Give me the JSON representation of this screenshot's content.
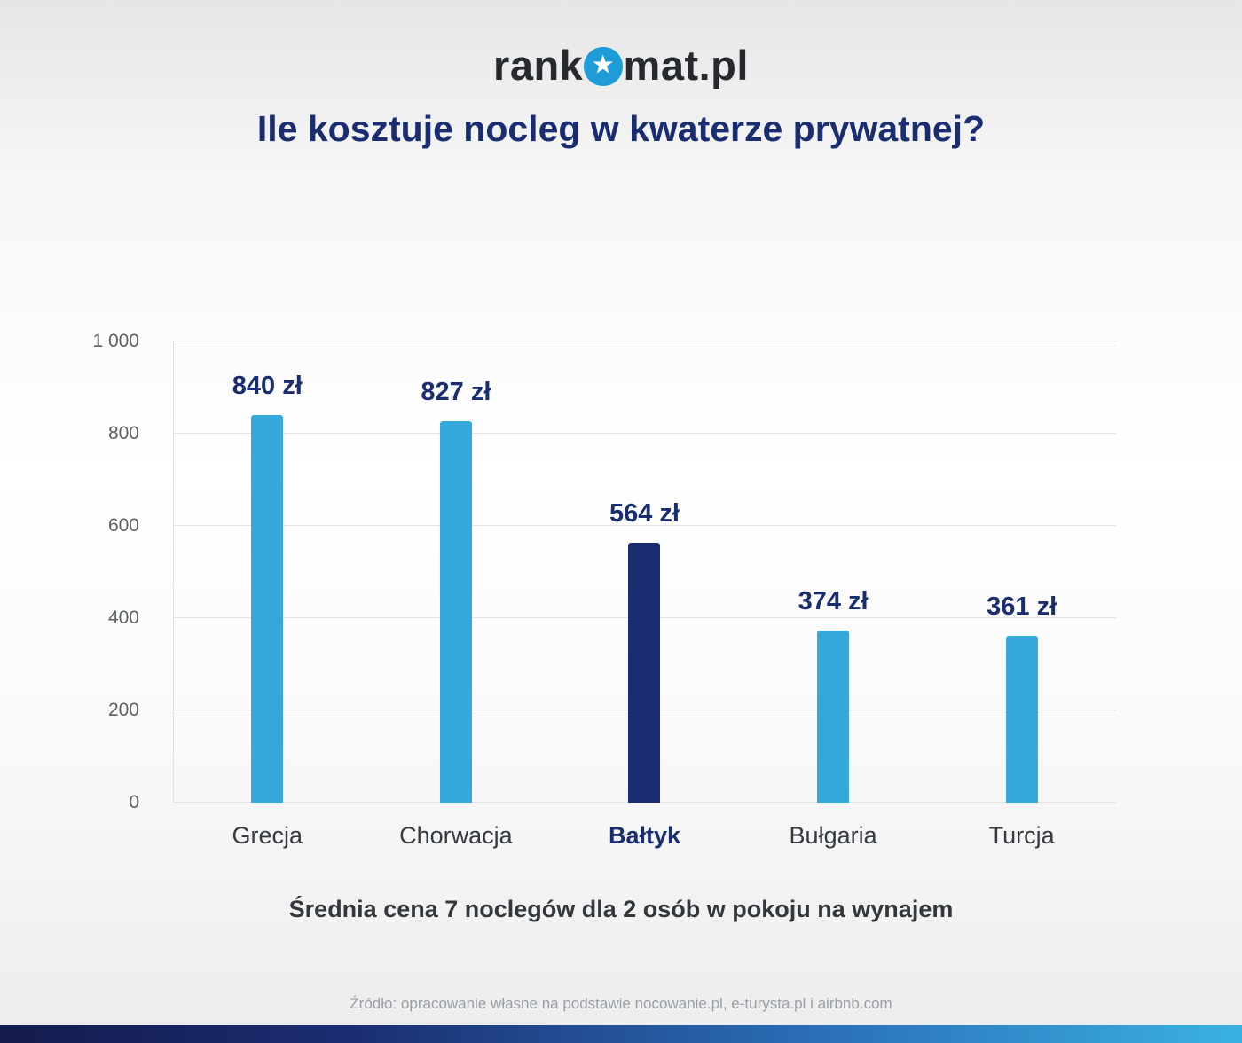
{
  "logo": {
    "prefix": "rank",
    "suffix": "mat.pl",
    "o_icon": "star-in-circle"
  },
  "title": "Ile kosztuje nocleg w kwaterze prywatnej?",
  "subtitle": "Średnia cena 7 noclegów dla 2 osób w pokoju na wynajem",
  "source": "Źródło: opracowanie własne na podstawie nocowanie.pl, e-turysta.pl i airbnb.com",
  "colors": {
    "bar": "#35a8dc",
    "bar_highlight": "#1b2d71",
    "title": "#1b2d71",
    "value_label": "#1b2d71",
    "grid": "#e2e2e2",
    "axis_text": "#5b6064",
    "category_text": "#343a40",
    "footer_text": "#9aa0a6",
    "logo_blue": "#1d9cd8",
    "bottom_bar_gradient": [
      "#141b4d",
      "#1b2d71",
      "#3ab1e3"
    ]
  },
  "chart_data": {
    "type": "bar",
    "title": "Ile kosztuje nocleg w kwaterze prywatnej?",
    "subtitle": "Średnia cena 7 noclegów dla 2 osób w pokoju na wynajem",
    "categories": [
      "Grecja",
      "Chorwacja",
      "Bałtyk",
      "Bułgaria",
      "Turcja"
    ],
    "values": [
      840,
      827,
      564,
      374,
      361
    ],
    "value_labels": [
      "840 zł",
      "827 zł",
      "564 zł",
      "374 zł",
      "361 zł"
    ],
    "unit": "zł",
    "highlight_index": 2,
    "xlabel": "",
    "ylabel": "",
    "ylim": [
      0,
      1000
    ],
    "yticks": [
      0,
      200,
      400,
      600,
      800,
      1000
    ],
    "ytick_labels": [
      "0",
      "200",
      "400",
      "600",
      "800",
      "1 000"
    ],
    "grid": true,
    "legend": false
  }
}
